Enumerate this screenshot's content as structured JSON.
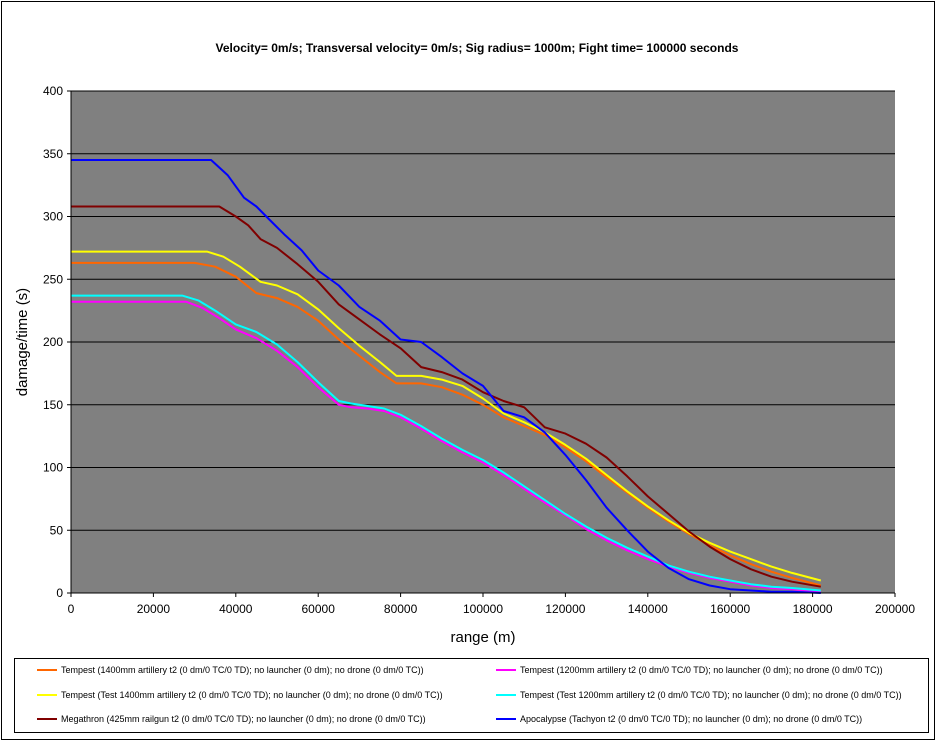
{
  "chart_data": {
    "type": "line",
    "title": "Velocity= 0m/s; Transversal velocity= 0m/s; Sig radius= 1000m; Fight time= 100000 seconds",
    "xlabel": "range (m)",
    "ylabel": "damage/time (s)",
    "xlim": [
      0,
      200000
    ],
    "ylim": [
      0,
      400
    ],
    "xticks": [
      "0",
      "20000",
      "40000",
      "60000",
      "80000",
      "100000",
      "120000",
      "140000",
      "160000",
      "180000",
      "200000"
    ],
    "yticks": [
      "0",
      "50",
      "100",
      "150",
      "200",
      "250",
      "300",
      "350",
      "400"
    ],
    "plot_background": "#808080",
    "grid": true,
    "legend_position": "bottom",
    "series": [
      {
        "name": "Tempest (1400mm artillery t2 (0 dm/0 TC/0 TD); no launcher (0 dm); no drone (0 dm/0 TC))",
        "color": "#FF6600",
        "x": [
          0,
          30000,
          35000,
          40000,
          45000,
          50000,
          55000,
          60000,
          65000,
          70000,
          75000,
          79000,
          85000,
          90000,
          95000,
          100000,
          105000,
          110000,
          115000,
          120000,
          125000,
          130000,
          135000,
          140000,
          145000,
          150000,
          155000,
          160000,
          165000,
          170000,
          175000,
          182000
        ],
        "y": [
          263,
          263,
          260,
          252,
          239,
          235,
          228,
          217,
          202,
          189,
          176,
          167,
          167,
          164,
          158,
          150,
          140,
          133,
          126,
          116,
          105,
          92,
          80,
          68,
          57,
          47,
          38,
          30,
          23,
          17,
          12,
          6
        ]
      },
      {
        "name": "Tempest (Test 1400mm artillery t2 (0 dm/0 TC/0 TD); no launcher (0 dm); no drone (0 dm/0 TC))",
        "color": "#FFFF00",
        "x": [
          0,
          33000,
          37000,
          41000,
          46000,
          50000,
          55000,
          60000,
          65000,
          70000,
          75000,
          79000,
          85000,
          90000,
          95000,
          100000,
          105000,
          110000,
          115000,
          120000,
          125000,
          130000,
          135000,
          140000,
          145000,
          150000,
          155000,
          160000,
          165000,
          170000,
          175000,
          182000
        ],
        "y": [
          272,
          272,
          268,
          260,
          248,
          245,
          238,
          226,
          211,
          197,
          184,
          173,
          173,
          170,
          165,
          155,
          143,
          136,
          128,
          118,
          107,
          94,
          81,
          69,
          58,
          48,
          40,
          33,
          27,
          21,
          16,
          10
        ]
      },
      {
        "name": "Megathron (425mm railgun t2 (0 dm/0 TC/0 TD); no launcher (0 dm); no drone (0 dm/0 TC))",
        "color": "#800000",
        "x": [
          0,
          36000,
          40000,
          43000,
          46000,
          50000,
          55000,
          60000,
          65000,
          70000,
          75000,
          80000,
          85000,
          90000,
          95000,
          100000,
          105000,
          110000,
          115000,
          120000,
          125000,
          130000,
          135000,
          140000,
          145000,
          150000,
          155000,
          160000,
          165000,
          170000,
          175000,
          182000
        ],
        "y": [
          308,
          308,
          300,
          293,
          282,
          275,
          262,
          248,
          230,
          218,
          206,
          195,
          180,
          176,
          170,
          160,
          153,
          148,
          132,
          127,
          119,
          108,
          93,
          77,
          63,
          49,
          37,
          27,
          19,
          13,
          9,
          5
        ]
      },
      {
        "name": "Tempest (1200mm artillery t2 (0 dm/0 TC/0 TD); no launcher (0 dm); no drone (0 dm/0 TC))",
        "color": "#FF00FF",
        "x": [
          0,
          28000,
          32000,
          36000,
          40000,
          45000,
          50000,
          55000,
          60000,
          65000,
          68000,
          72000,
          76000,
          80000,
          85000,
          90000,
          95000,
          100000,
          105000,
          110000,
          115000,
          120000,
          125000,
          130000,
          135000,
          140000,
          145000,
          150000,
          155000,
          160000,
          165000,
          170000,
          175000,
          182000
        ],
        "y": [
          232,
          232,
          227,
          219,
          210,
          203,
          193,
          180,
          164,
          150,
          148,
          147,
          145,
          140,
          131,
          121,
          112,
          104,
          94,
          83,
          72,
          62,
          51,
          42,
          34,
          27,
          21,
          16,
          12,
          9,
          6,
          4,
          3,
          1
        ]
      },
      {
        "name": "Tempest (Test 1200mm artillery t2 (0 dm/0 TC/0 TD); no launcher (0 dm); no drone (0 dm/0 TC))",
        "color": "#00FFFF",
        "x": [
          0,
          27000,
          31000,
          35000,
          40000,
          45000,
          50000,
          55000,
          60000,
          65000,
          68000,
          72000,
          76000,
          80000,
          85000,
          90000,
          95000,
          100000,
          105000,
          110000,
          115000,
          120000,
          125000,
          130000,
          135000,
          140000,
          145000,
          150000,
          155000,
          160000,
          165000,
          170000,
          175000,
          182000
        ],
        "y": [
          237,
          237,
          233,
          225,
          214,
          208,
          198,
          184,
          168,
          153,
          151,
          149,
          147,
          142,
          133,
          123,
          114,
          106,
          96,
          85,
          74,
          63,
          53,
          44,
          36,
          29,
          22,
          17,
          13,
          10,
          7,
          5,
          4,
          2
        ]
      },
      {
        "name": "Apocalypse (Tachyon t2 (0 dm/0 TC/0 TD); no launcher (0 dm); no drone (0 dm/0 TC))",
        "color": "#0000FF",
        "x": [
          0,
          34000,
          38000,
          42000,
          45000,
          48000,
          52000,
          56000,
          60000,
          65000,
          70000,
          75000,
          80000,
          85000,
          90000,
          95000,
          100000,
          105000,
          110000,
          115000,
          120000,
          125000,
          130000,
          135000,
          140000,
          145000,
          150000,
          155000,
          160000,
          165000,
          170000,
          175000,
          182000
        ],
        "y": [
          345,
          345,
          333,
          315,
          308,
          298,
          285,
          273,
          257,
          245,
          228,
          217,
          202,
          200,
          188,
          175,
          165,
          145,
          140,
          128,
          110,
          90,
          68,
          50,
          33,
          20,
          11,
          6,
          3,
          2,
          1,
          1,
          0
        ]
      }
    ]
  },
  "legend": {
    "columns": [
      [
        {
          "label": "Tempest (1400mm artillery t2 (0 dm/0 TC/0 TD); no launcher (0 dm); no drone (0 dm/0 TC))",
          "color": "#FF6600"
        },
        {
          "label": "Tempest (Test 1400mm artillery t2 (0 dm/0 TC/0 TD); no launcher (0 dm); no drone (0 dm/0 TC))",
          "color": "#FFFF00"
        },
        {
          "label": "Megathron (425mm railgun t2 (0 dm/0 TC/0 TD); no launcher (0 dm); no drone (0 dm/0 TC))",
          "color": "#800000"
        }
      ],
      [
        {
          "label": "Tempest (1200mm artillery t2 (0 dm/0 TC/0 TD); no launcher (0 dm); no drone (0 dm/0 TC))",
          "color": "#FF00FF"
        },
        {
          "label": "Tempest (Test 1200mm artillery t2 (0 dm/0 TC/0 TD); no launcher (0 dm); no drone (0 dm/0 TC))",
          "color": "#00FFFF"
        },
        {
          "label": "Apocalypse (Tachyon t2 (0 dm/0 TC/0 TD); no launcher (0 dm); no drone (0 dm/0 TC))",
          "color": "#0000FF"
        }
      ]
    ]
  }
}
